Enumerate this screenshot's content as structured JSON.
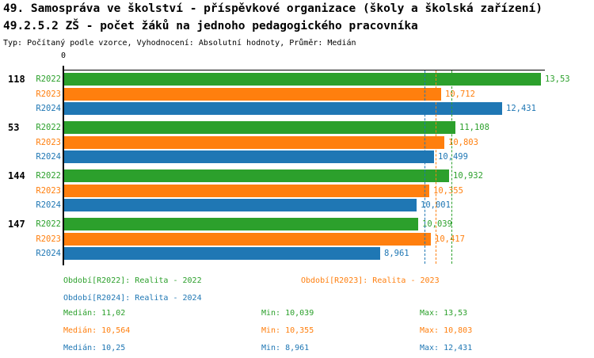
{
  "header": {
    "title1": "49. Samospráva ve školství - příspěvkové organizace (školy a školská zařízení)",
    "title2": "49.2.5.2 ZŠ - počet žáků na jednoho pedagogického pracovníka",
    "subtitle": "Typ: Počítaný podle vzorce, Vyhodnocení: Absolutní hodnoty, Průměr: Medián"
  },
  "colors": {
    "r2022_green": "#2ca02c",
    "r2023_orange": "#ff7f0e",
    "r2024_blue": "#1f77b4",
    "axis_black": "#000000"
  },
  "chart_data": {
    "type": "bar",
    "orientation": "horizontal",
    "x_axis": {
      "zero_label": "0",
      "min": 0,
      "max": 13.67,
      "grid": false
    },
    "series_names": [
      "R2022",
      "R2023",
      "R2024"
    ],
    "series_colors": [
      "#2ca02c",
      "#ff7f0e",
      "#1f77b4"
    ],
    "groups": [
      {
        "label": "118",
        "values": [
          13.53,
          10.712,
          12.431
        ],
        "value_labels": [
          "13,53",
          "10,712",
          "12,431"
        ]
      },
      {
        "label": "53",
        "values": [
          11.108,
          10.803,
          10.499
        ],
        "value_labels": [
          "11,108",
          "10,803",
          "10,499"
        ]
      },
      {
        "label": "144",
        "values": [
          10.932,
          10.355,
          10.001
        ],
        "value_labels": [
          "10,932",
          "10,355",
          "10,001"
        ]
      },
      {
        "label": "147",
        "values": [
          10.039,
          10.417,
          8.961
        ],
        "value_labels": [
          "10,039",
          "10,417",
          "8,961"
        ]
      }
    ],
    "median_lines": [
      {
        "series": "R2022",
        "value": 11.02,
        "color": "#2ca02c"
      },
      {
        "series": "R2023",
        "value": 10.564,
        "color": "#ff7f0e"
      },
      {
        "series": "R2024",
        "value": 10.25,
        "color": "#1f77b4"
      }
    ]
  },
  "legend": [
    {
      "label": "Období[R2022]: Realita - 2022",
      "color": "#2ca02c"
    },
    {
      "label": "Období[R2023]: Realita - 2023",
      "color": "#ff7f0e"
    },
    {
      "label": "Období[R2024]: Realita - 2024",
      "color": "#1f77b4"
    }
  ],
  "stats": [
    {
      "median": "Medián: 11,02",
      "min": "Min: 10,039",
      "max": "Max: 13,53",
      "color": "#2ca02c"
    },
    {
      "median": "Medián: 10,564",
      "min": "Min: 10,355",
      "max": "Max: 10,803",
      "color": "#ff7f0e"
    },
    {
      "median": "Medián: 10,25",
      "min": "Min: 8,961",
      "max": "Max: 12,431",
      "color": "#1f77b4"
    }
  ]
}
